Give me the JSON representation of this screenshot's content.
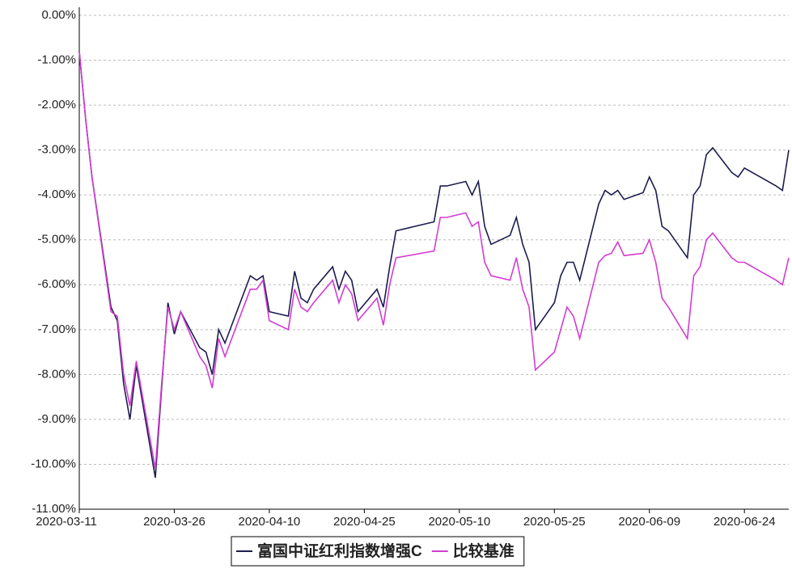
{
  "chart_data": {
    "type": "line",
    "x": [
      "2020-03-11",
      "2020-03-12",
      "2020-03-13",
      "2020-03-16",
      "2020-03-17",
      "2020-03-18",
      "2020-03-19",
      "2020-03-20",
      "2020-03-23",
      "2020-03-24",
      "2020-03-25",
      "2020-03-26",
      "2020-03-27",
      "2020-03-30",
      "2020-03-31",
      "2020-04-01",
      "2020-04-02",
      "2020-04-03",
      "2020-04-07",
      "2020-04-08",
      "2020-04-09",
      "2020-04-10",
      "2020-04-13",
      "2020-04-14",
      "2020-04-15",
      "2020-04-16",
      "2020-04-17",
      "2020-04-20",
      "2020-04-21",
      "2020-04-22",
      "2020-04-23",
      "2020-04-24",
      "2020-04-27",
      "2020-04-28",
      "2020-04-29",
      "2020-04-30",
      "2020-05-06",
      "2020-05-07",
      "2020-05-08",
      "2020-05-11",
      "2020-05-12",
      "2020-05-13",
      "2020-05-14",
      "2020-05-15",
      "2020-05-18",
      "2020-05-19",
      "2020-05-20",
      "2020-05-21",
      "2020-05-22",
      "2020-05-25",
      "2020-05-26",
      "2020-05-27",
      "2020-05-28",
      "2020-05-29",
      "2020-06-01",
      "2020-06-02",
      "2020-06-03",
      "2020-06-04",
      "2020-06-05",
      "2020-06-08",
      "2020-06-09",
      "2020-06-10",
      "2020-06-11",
      "2020-06-12",
      "2020-06-15",
      "2020-06-16",
      "2020-06-17",
      "2020-06-18",
      "2020-06-19",
      "2020-06-22",
      "2020-06-23",
      "2020-06-24",
      "2020-06-29",
      "2020-06-30",
      "2020-07-01"
    ],
    "series": [
      {
        "name": "富国中证红利指数增强C",
        "color": "#1c1c50",
        "values": [
          -0.8,
          -2.3,
          -3.6,
          -6.5,
          -6.8,
          -8.2,
          -9.0,
          -7.8,
          -10.3,
          -8.3,
          -6.4,
          -7.1,
          -6.6,
          -7.4,
          -7.5,
          -8.0,
          -7.0,
          -7.3,
          -5.8,
          -5.9,
          -5.8,
          -6.6,
          -6.7,
          -5.7,
          -6.3,
          -6.4,
          -6.1,
          -5.6,
          -6.1,
          -5.7,
          -5.9,
          -6.6,
          -6.1,
          -6.5,
          -5.6,
          -4.8,
          -4.6,
          -3.8,
          -3.8,
          -3.7,
          -4.0,
          -3.7,
          -4.7,
          -5.1,
          -4.9,
          -4.5,
          -5.1,
          -5.5,
          -7.0,
          -6.4,
          -5.8,
          -5.5,
          -5.5,
          -5.9,
          -4.2,
          -3.9,
          -4.0,
          -3.9,
          -4.1,
          -3.95,
          -3.6,
          -3.9,
          -4.7,
          -4.8,
          -5.4,
          -4.0,
          -3.8,
          -3.1,
          -2.95,
          -3.5,
          -3.6,
          -3.4,
          -3.8,
          -3.9,
          -3.0
        ]
      },
      {
        "name": "比较基准",
        "color": "#d23cd2",
        "values": [
          -0.8,
          -2.3,
          -3.6,
          -6.6,
          -6.7,
          -8.0,
          -8.7,
          -7.7,
          -10.1,
          -8.2,
          -6.5,
          -7.0,
          -6.6,
          -7.6,
          -7.8,
          -8.3,
          -7.2,
          -7.6,
          -6.1,
          -6.1,
          -5.9,
          -6.8,
          -7.0,
          -6.1,
          -6.5,
          -6.6,
          -6.4,
          -5.9,
          -6.4,
          -6.0,
          -6.2,
          -6.8,
          -6.3,
          -6.9,
          -6.0,
          -5.4,
          -5.25,
          -4.5,
          -4.5,
          -4.4,
          -4.7,
          -4.6,
          -5.5,
          -5.8,
          -5.9,
          -5.4,
          -6.1,
          -6.5,
          -7.9,
          -7.5,
          -7.0,
          -6.5,
          -6.7,
          -7.2,
          -5.5,
          -5.35,
          -5.3,
          -5.05,
          -5.35,
          -5.3,
          -5.0,
          -5.5,
          -6.3,
          -6.5,
          -7.2,
          -5.8,
          -5.6,
          -5.0,
          -4.85,
          -5.4,
          -5.5,
          -5.5,
          -5.9,
          -6.0,
          -5.4
        ]
      }
    ],
    "xlim": [
      "2020-03-11",
      "2020-07-01"
    ],
    "xticks": [
      "2020-03-11",
      "2020-03-26",
      "2020-04-10",
      "2020-04-25",
      "2020-05-10",
      "2020-05-25",
      "2020-06-09",
      "2020-06-24"
    ],
    "ylim": [
      -11,
      0
    ],
    "yticks": [
      {
        "value": -11,
        "label": "-11.00%"
      },
      {
        "value": -10,
        "label": "-10.00%"
      },
      {
        "value": -9,
        "label": "-9.00%"
      },
      {
        "value": -8,
        "label": "-8.00%"
      },
      {
        "value": -7,
        "label": "-7.00%"
      },
      {
        "value": -6,
        "label": "-6.00%"
      },
      {
        "value": -5,
        "label": "-5.00%"
      },
      {
        "value": -4,
        "label": "-4.00%"
      },
      {
        "value": -3,
        "label": "-3.00%"
      },
      {
        "value": -2,
        "label": "-2.00%"
      },
      {
        "value": -1,
        "label": "-1.00%"
      },
      {
        "value": 0,
        "label": "0.00%"
      }
    ],
    "grid": true,
    "legend": "bottom"
  }
}
